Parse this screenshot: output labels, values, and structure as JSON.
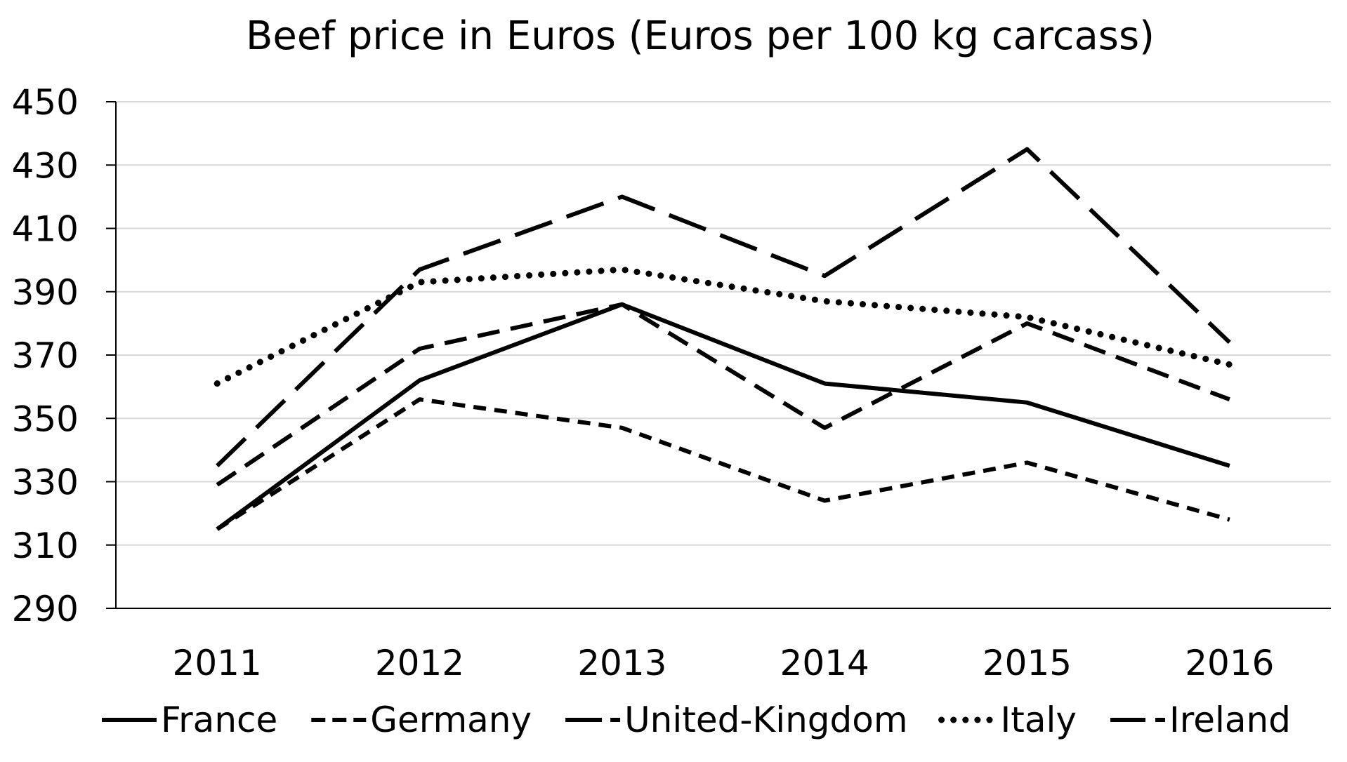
{
  "chart_data": {
    "type": "line",
    "title": "Beef price in Euros (Euros per 100 kg carcass)",
    "xlabel": "",
    "ylabel": "",
    "categories": [
      "2011",
      "2012",
      "2013",
      "2014",
      "2015",
      "2016"
    ],
    "yticks": [
      "450",
      "430",
      "410",
      "390",
      "370",
      "350",
      "330",
      "310",
      "290"
    ],
    "ylim": [
      290,
      450
    ],
    "grid": true,
    "legend_position": "bottom",
    "series": [
      {
        "name": "France",
        "style": "solid",
        "values": [
          315,
          362,
          386,
          361,
          355,
          335
        ]
      },
      {
        "name": "Germany",
        "style": "dash",
        "values": [
          315,
          356,
          347,
          324,
          336,
          318
        ]
      },
      {
        "name": "United-Kingdom",
        "style": "dash-small",
        "values": [
          329,
          372,
          386,
          347,
          380,
          356
        ]
      },
      {
        "name": "Italy",
        "style": "dot",
        "values": [
          361,
          393,
          397,
          387,
          382,
          367
        ]
      },
      {
        "name": "Ireland",
        "style": "dash-long",
        "values": [
          335,
          397,
          420,
          395,
          435,
          374
        ]
      }
    ],
    "colors": {
      "line": "#000000",
      "grid": "#d9d9d9",
      "axis": "#000000",
      "text": "#000000"
    }
  }
}
